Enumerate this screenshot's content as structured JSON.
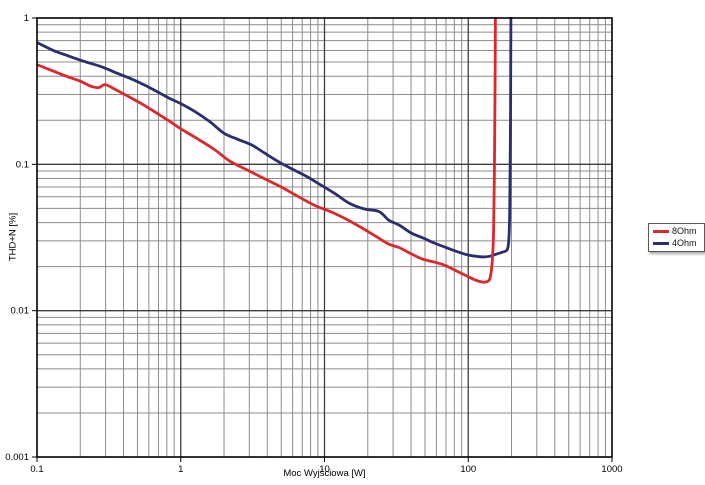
{
  "chart_data": {
    "type": "line",
    "title": "",
    "xlabel": "Moc Wyjściowa [W]",
    "ylabel": "THD+N [%]",
    "x_scale": "log",
    "y_scale": "log",
    "xlim": [
      0.1,
      1000
    ],
    "ylim": [
      0.001,
      1
    ],
    "x_ticks": [
      {
        "value": 0.1,
        "label": "0.1"
      },
      {
        "value": 1,
        "label": "1"
      },
      {
        "value": 10,
        "label": "10"
      },
      {
        "value": 100,
        "label": "100"
      },
      {
        "value": 1000,
        "label": "1000"
      }
    ],
    "y_ticks": [
      {
        "value": 1,
        "label": "1"
      },
      {
        "value": 0.1,
        "label": "0.1"
      },
      {
        "value": 0.01,
        "label": "0.01"
      },
      {
        "value": 0.001,
        "label": "0.001"
      }
    ],
    "grid": "log major + minor, both axes",
    "legend_position": "outside-right",
    "series": [
      {
        "name": "4Ohm",
        "color": "#2b2e6e",
        "points": [
          [
            0.1,
            0.68
          ],
          [
            0.13,
            0.6
          ],
          [
            0.17,
            0.545
          ],
          [
            0.22,
            0.5
          ],
          [
            0.28,
            0.465
          ],
          [
            0.35,
            0.425
          ],
          [
            0.45,
            0.385
          ],
          [
            0.57,
            0.345
          ],
          [
            0.7,
            0.31
          ],
          [
            0.85,
            0.28
          ],
          [
            1.0,
            0.26
          ],
          [
            1.25,
            0.23
          ],
          [
            1.6,
            0.195
          ],
          [
            2.0,
            0.163
          ],
          [
            2.5,
            0.148
          ],
          [
            3.1,
            0.136
          ],
          [
            3.8,
            0.12
          ],
          [
            4.8,
            0.104
          ],
          [
            6.0,
            0.0925
          ],
          [
            7.6,
            0.082
          ],
          [
            9.6,
            0.0715
          ],
          [
            12,
            0.0625
          ],
          [
            15,
            0.054
          ],
          [
            19,
            0.0495
          ],
          [
            24,
            0.0475
          ],
          [
            28,
            0.0415
          ],
          [
            33,
            0.0385
          ],
          [
            40,
            0.034
          ],
          [
            48,
            0.0315
          ],
          [
            58,
            0.029
          ],
          [
            70,
            0.027
          ],
          [
            85,
            0.0252
          ],
          [
            100,
            0.024
          ],
          [
            115,
            0.0235
          ],
          [
            130,
            0.0233
          ],
          [
            145,
            0.0237
          ],
          [
            160,
            0.0245
          ],
          [
            175,
            0.0252
          ],
          [
            185,
            0.0258
          ],
          [
            190,
            0.028
          ],
          [
            193,
            0.036
          ],
          [
            195,
            0.065
          ],
          [
            196.5,
            0.16
          ],
          [
            197.5,
            0.45
          ],
          [
            198,
            1.0
          ]
        ]
      },
      {
        "name": "8Ohm",
        "color": "#dc282d",
        "points": [
          [
            0.1,
            0.48
          ],
          [
            0.125,
            0.44
          ],
          [
            0.16,
            0.4
          ],
          [
            0.2,
            0.37
          ],
          [
            0.24,
            0.34
          ],
          [
            0.27,
            0.335
          ],
          [
            0.3,
            0.35
          ],
          [
            0.36,
            0.32
          ],
          [
            0.45,
            0.285
          ],
          [
            0.55,
            0.255
          ],
          [
            0.7,
            0.22
          ],
          [
            0.85,
            0.195
          ],
          [
            1.0,
            0.175
          ],
          [
            1.3,
            0.15
          ],
          [
            1.7,
            0.127
          ],
          [
            2.2,
            0.105
          ],
          [
            2.9,
            0.0915
          ],
          [
            3.8,
            0.08
          ],
          [
            5.0,
            0.07
          ],
          [
            6.6,
            0.06
          ],
          [
            8.7,
            0.052
          ],
          [
            11,
            0.0475
          ],
          [
            14,
            0.0425
          ],
          [
            18,
            0.037
          ],
          [
            23,
            0.032
          ],
          [
            28,
            0.0285
          ],
          [
            33,
            0.027
          ],
          [
            40,
            0.0245
          ],
          [
            48,
            0.0225
          ],
          [
            58,
            0.0215
          ],
          [
            68,
            0.0205
          ],
          [
            80,
            0.019
          ],
          [
            95,
            0.0175
          ],
          [
            110,
            0.0163
          ],
          [
            125,
            0.0157
          ],
          [
            135,
            0.0158
          ],
          [
            142,
            0.0168
          ],
          [
            147,
            0.022
          ],
          [
            150,
            0.035
          ],
          [
            152,
            0.09
          ],
          [
            153.5,
            0.3
          ],
          [
            154.5,
            1.0
          ]
        ]
      }
    ]
  },
  "legend": {
    "items": [
      {
        "label": "8Ohm",
        "color": "#dc282d"
      },
      {
        "label": "4Ohm",
        "color": "#2b2e6e"
      }
    ]
  },
  "colors": {
    "background": "#ffffff",
    "grid_minor": "#8c8c8c",
    "grid_major": "#3c3c3c",
    "plot_border": "#000000",
    "text": "#000000"
  }
}
